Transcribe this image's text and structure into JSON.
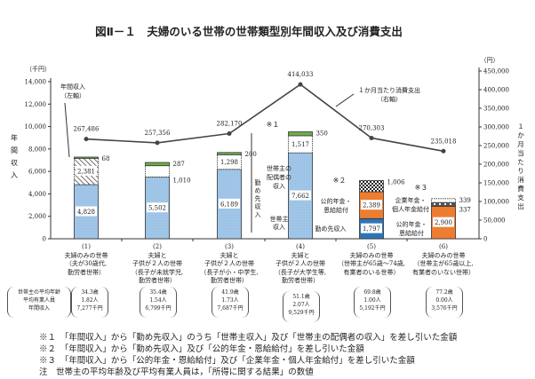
{
  "title": "図Ⅱ－１　夫婦のいる世帯の世帯類型別年間収入及び消費支出",
  "chart_data": {
    "type": "bar+line",
    "title": "図Ⅱ－１　夫婦のいる世帯の世帯類型別年間収入及び消費支出",
    "left_axis": {
      "unit": "（千円）",
      "label": "年間収入",
      "ylim": [
        0,
        14000
      ],
      "ticks": [
        "0",
        "2,000",
        "4,000",
        "6,000",
        "8,000",
        "10,000",
        "12,000",
        "14,000"
      ]
    },
    "right_axis": {
      "unit": "（円）",
      "label": "１か月当たり消費支出",
      "ylim": [
        0,
        450000
      ],
      "ticks": [
        "0",
        "50,000",
        "100,000",
        "150,000",
        "200,000",
        "250,000",
        "300,000",
        "350,000",
        "400,000",
        "450,000"
      ]
    },
    "categories": [
      "(1)",
      "(2)",
      "(3)",
      "(4)",
      "(5)",
      "(6)"
    ],
    "bars": [
      {
        "segments": [
          {
            "type": "householder",
            "value": 4828,
            "label": "4,828"
          },
          {
            "type": "spouse",
            "value": 2381,
            "label": "2,381"
          },
          {
            "type": "note1",
            "value": 68,
            "label": "68"
          }
        ]
      },
      {
        "segments": [
          {
            "type": "householder",
            "value": 5502,
            "label": "5,502"
          },
          {
            "type": "spouse",
            "value": 1010,
            "label": "1,010"
          },
          {
            "type": "note1",
            "value": 287,
            "label": "287"
          }
        ]
      },
      {
        "segments": [
          {
            "type": "householder",
            "value": 6189,
            "label": "6,189"
          },
          {
            "type": "spouse",
            "value": 1298,
            "label": "1,298"
          },
          {
            "type": "note1",
            "value": 200,
            "label": "200"
          }
        ]
      },
      {
        "segments": [
          {
            "type": "householder",
            "value": 7662,
            "label": "7,662"
          },
          {
            "type": "spouse",
            "value": 1517,
            "label": "1,517"
          },
          {
            "type": "note1",
            "value": 350,
            "label": "350"
          }
        ]
      },
      {
        "segments": [
          {
            "type": "work",
            "value": 1797,
            "label": "1,797"
          },
          {
            "type": "pension",
            "value": 2389,
            "label": "2,389"
          },
          {
            "type": "note2",
            "value": 1006,
            "label": "1,006"
          }
        ]
      },
      {
        "segments": [
          {
            "type": "pension",
            "value": 2900,
            "label": "2,900"
          },
          {
            "type": "corp_pension",
            "value": 337,
            "label": "337"
          },
          {
            "type": "note3",
            "value": 339,
            "label": "339"
          }
        ]
      }
    ],
    "line": {
      "name": "１か月当たり消費支出（右軸）",
      "values": [
        267486,
        257356,
        282170,
        414033,
        270303,
        235018
      ],
      "labels": [
        "267,486",
        "257,356",
        "282,170",
        "414,033",
        "270,303",
        "235,018"
      ]
    },
    "annotations": {
      "income_left": "年間収入",
      "income_left2": "（左軸）",
      "spend_right": "１か月当たり消費支出",
      "spend_right2": "（右軸）",
      "work_income": "勤め先収入",
      "spouse_income": "世帯主の配偶者の収入",
      "householder_income": "世帯主収入",
      "note1": "※１",
      "note2": "※２",
      "note3": "※３",
      "pension": "公的年金・恩給給付",
      "corp_pension": "企業年金・個人年金給付",
      "work_income5": "勤め先収入"
    },
    "colors": {
      "householder": "#9dc3e6",
      "work": "#2e75b6",
      "pension": "#ed7d31",
      "note1": "#70ad47",
      "line": "#444444"
    }
  },
  "categories_detail": [
    {
      "num": "(1)",
      "lines": [
        "夫婦のみの世帯",
        "（夫が30歳代,",
        "勤労者世帯）"
      ],
      "age": "34.3歳",
      "earners": "1.82人",
      "income": "7,277千円"
    },
    {
      "num": "(2)",
      "lines": [
        "夫婦と",
        "子供が２人の世帯",
        "（長子が未就学児,",
        "勤労者世帯）"
      ],
      "age": "35.4歳",
      "earners": "1.54人",
      "income": "6,799千円"
    },
    {
      "num": "(3)",
      "lines": [
        "夫婦と",
        "子供が２人の世帯",
        "（長子が小・中学生,",
        "勤労者世帯）"
      ],
      "age": "41.9歳",
      "earners": "1.73人",
      "income": "7,687千円"
    },
    {
      "num": "(4)",
      "lines": [
        "夫婦と",
        "子供が２人の世帯",
        "（長子が大学生等,",
        "勤労者世帯）"
      ],
      "age": "51.1歳",
      "earners": "2.07人",
      "income": "9,529千円"
    },
    {
      "num": "(5)",
      "lines": [
        "夫婦のみの世帯",
        "（世帯主が65歳～74歳,",
        "有業者のいる世帯）"
      ],
      "age": "69.8歳",
      "earners": "1.00人",
      "income": "5,192千円"
    },
    {
      "num": "(6)",
      "lines": [
        "夫婦のみの世帯",
        "（世帯主が65歳以上,",
        "有業者のいない世帯）"
      ],
      "age": "77.2歳",
      "earners": "0.00人",
      "income": "3,576千円"
    }
  ],
  "legend_box": [
    "世帯主の平均年齢",
    "平均有業人員",
    "年間収入"
  ],
  "notes": [
    "※１　「年間収入」から「勤め先収入」のうち「世帯主収入」及び「世帯主の配偶者の収入」を差し引いた金額",
    "※２　「年間収入」から「勤め先収入」及び「公的年金・恩給給付」を差し引いた金額",
    "※３　「年間収入」から「公的年金・恩給給付」及び「企業年金・個人年金給付」を差し引いた金額",
    "注　世帯主の平均年齢及び平均有業人員は，「所得に関する結果」の数値"
  ]
}
